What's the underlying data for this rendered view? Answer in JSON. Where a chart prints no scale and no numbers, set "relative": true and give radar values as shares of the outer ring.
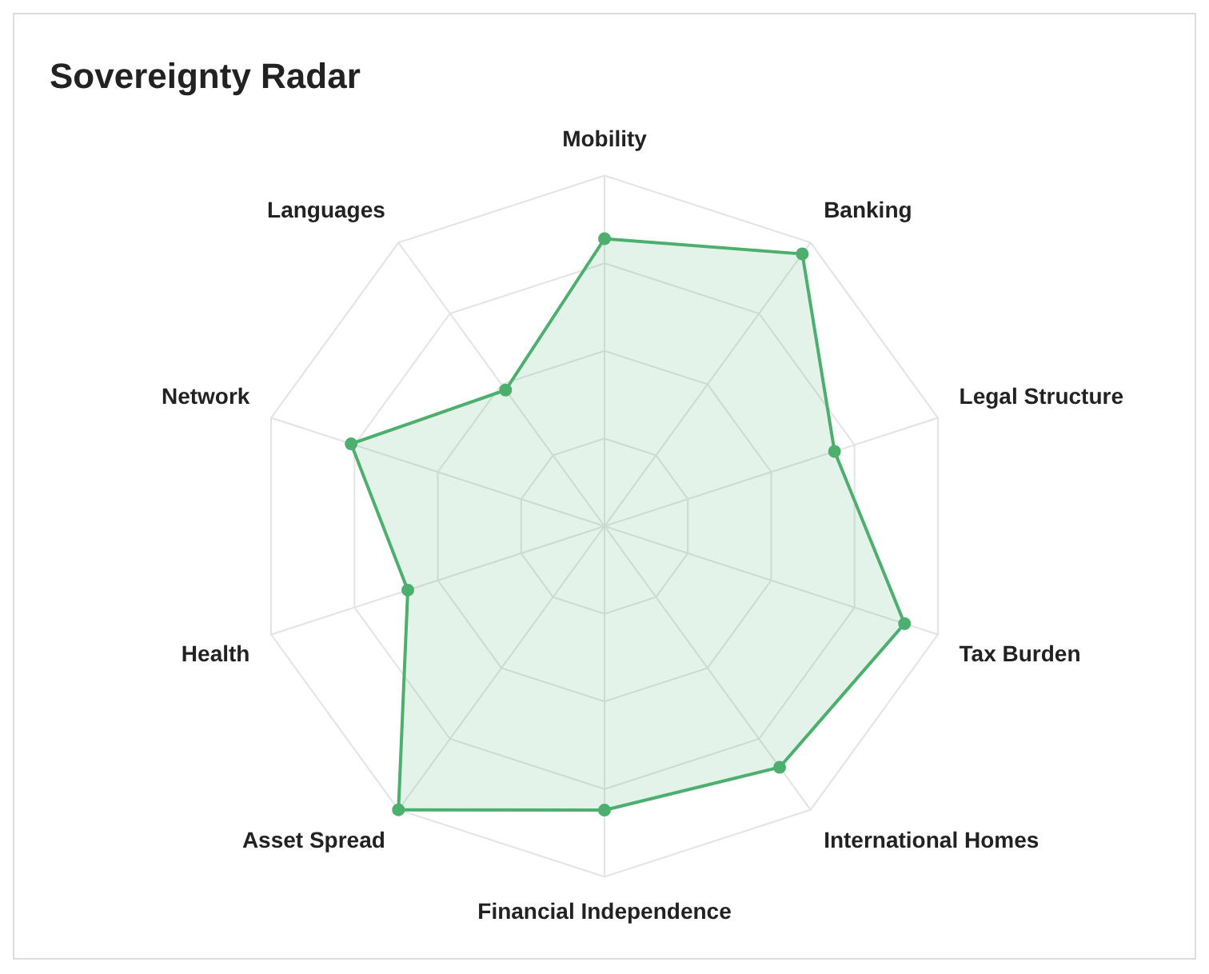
{
  "chart_data": {
    "type": "radar",
    "title": "Sovereignty Radar",
    "relative": true,
    "marker": "circle",
    "grid": true,
    "categories": [
      "Mobility",
      "Banking",
      "Legal Structure",
      "Tax Burden",
      "International Homes",
      "Financial Independence",
      "Asset Spread",
      "Health",
      "Network",
      "Languages"
    ],
    "series": [
      {
        "color": "#4caf6e",
        "values": [
          0.82,
          0.96,
          0.69,
          0.9,
          0.85,
          0.81,
          1.0,
          0.59,
          0.76,
          0.48
        ]
      }
    ]
  }
}
